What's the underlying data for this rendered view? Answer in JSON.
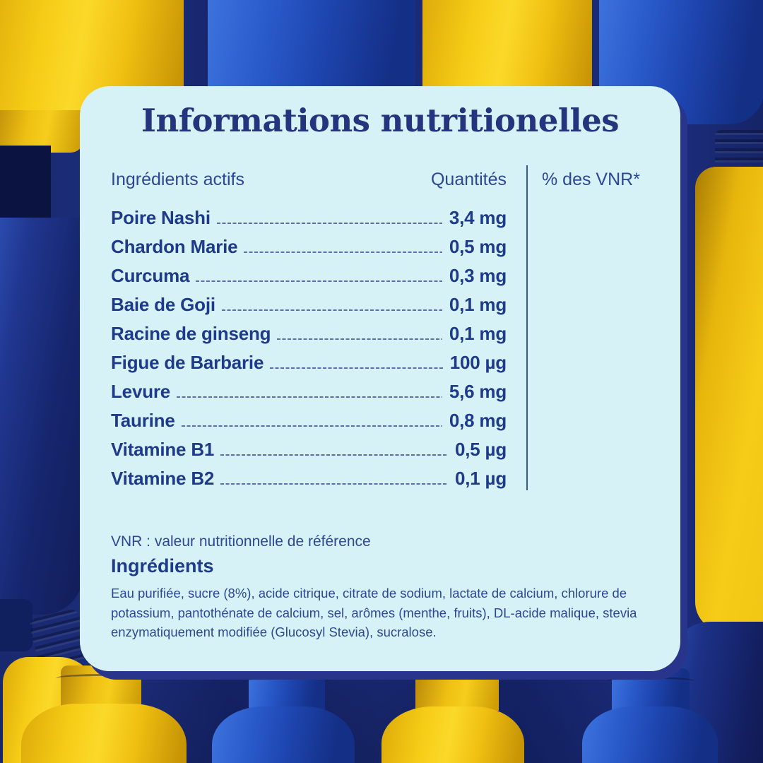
{
  "card": {
    "title": "Informations nutritionelles",
    "table": {
      "col_ingredients": "Ingrédients actifs",
      "col_quantities": "Quantités",
      "col_vnr": "% des VNR*",
      "rows": [
        {
          "label": "Poire Nashi",
          "value": "3,4 mg"
        },
        {
          "label": "Chardon Marie",
          "value": "0,5 mg"
        },
        {
          "label": "Curcuma",
          "value": "0,3 mg"
        },
        {
          "label": "Baie de Goji",
          "value": "0,1 mg"
        },
        {
          "label": "Racine de ginseng",
          "value": "0,1 mg"
        },
        {
          "label": "Figue de Barbarie",
          "value": "100 µg"
        },
        {
          "label": "Levure",
          "value": "5,6 mg"
        },
        {
          "label": "Taurine",
          "value": "0,8 mg"
        },
        {
          "label": "Vitamine B1",
          "value": "0,5 µg"
        },
        {
          "label": "Vitamine B2",
          "value": "0,1 µg"
        }
      ]
    },
    "footnote": "VNR : valeur nutritionnelle de référence",
    "ingredients_heading": "Ingrédients",
    "ingredients_text": "Eau purifiée, sucre (8%), acide citrique, citrate de sodium, lactate de calcium, chlorure de potassium, pantothénate de calcium, sel, arômes (menthe, fruits), DL-acide malique, stevia enzymatiquement modifiée (Glucosyl Stevia), sucralose."
  },
  "colors": {
    "card_bg": "#d6f2f6",
    "title": "#24357e",
    "label": "#1e3a8a",
    "muted": "#2c4796",
    "leader": "#5b6fae",
    "shadow": "#28358b",
    "bottle_yellow": "#f6cd16",
    "bottle_blue": "#2a5bcb",
    "background_navy": "#1b2c78"
  }
}
